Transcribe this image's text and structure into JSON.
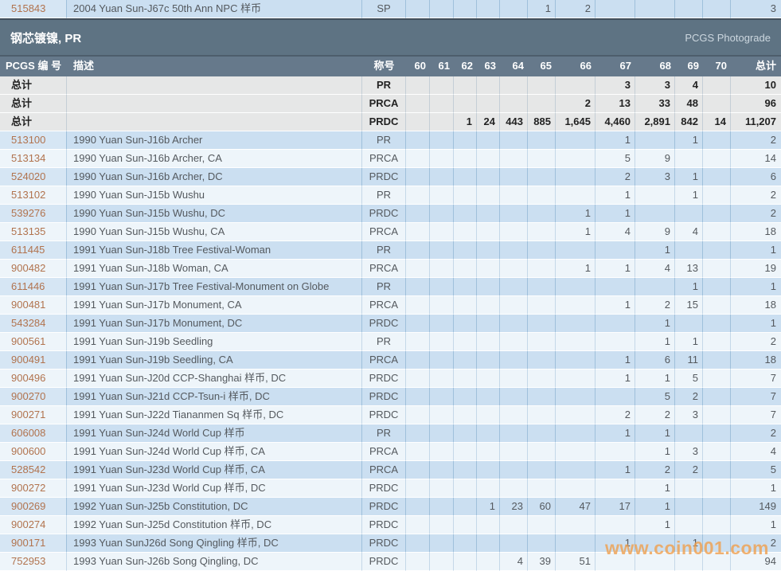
{
  "section": {
    "title": "钢芯镀镍, PR",
    "right_label": "PCGS Photograde"
  },
  "header": {
    "id_label": "PCGS 编 号",
    "desc_label": "描述",
    "designation_label": "称号",
    "grade_labels": [
      "60",
      "61",
      "62",
      "63",
      "64",
      "65",
      "66",
      "67",
      "68",
      "69",
      "70"
    ],
    "total_label": "总计"
  },
  "top_row": {
    "id": "515843",
    "desc": "2004 Yuan Sun-J67c 50th Ann NPC 样币",
    "designation": "SP",
    "grades": [
      "",
      "",
      "",
      "",
      "",
      "1",
      "2",
      "",
      "",
      "",
      ""
    ],
    "total": "3"
  },
  "summary_rows": [
    {
      "id": "总计",
      "desc": "",
      "designation": "PR",
      "grades": [
        "",
        "",
        "",
        "",
        "",
        "",
        "",
        "3",
        "3",
        "4",
        ""
      ],
      "total": "10"
    },
    {
      "id": "总计",
      "desc": "",
      "designation": "PRCA",
      "grades": [
        "",
        "",
        "",
        "",
        "",
        "",
        "2",
        "13",
        "33",
        "48",
        ""
      ],
      "total": "96"
    },
    {
      "id": "总计",
      "desc": "",
      "designation": "PRDC",
      "grades": [
        "",
        "",
        "1",
        "24",
        "443",
        "885",
        "1,645",
        "4,460",
        "2,891",
        "842",
        "14"
      ],
      "total": "11,207"
    }
  ],
  "rows": [
    {
      "id": "513100",
      "desc": "1990 Yuan Sun-J16b Archer",
      "designation": "PR",
      "grades": [
        "",
        "",
        "",
        "",
        "",
        "",
        "",
        "1",
        "",
        "1",
        ""
      ],
      "total": "2"
    },
    {
      "id": "513134",
      "desc": "1990 Yuan Sun-J16b Archer, CA",
      "designation": "PRCA",
      "grades": [
        "",
        "",
        "",
        "",
        "",
        "",
        "",
        "5",
        "9",
        "",
        ""
      ],
      "total": "14"
    },
    {
      "id": "524020",
      "desc": "1990 Yuan Sun-J16b Archer, DC",
      "designation": "PRDC",
      "grades": [
        "",
        "",
        "",
        "",
        "",
        "",
        "",
        "2",
        "3",
        "1",
        ""
      ],
      "total": "6"
    },
    {
      "id": "513102",
      "desc": "1990 Yuan Sun-J15b Wushu",
      "designation": "PR",
      "grades": [
        "",
        "",
        "",
        "",
        "",
        "",
        "",
        "1",
        "",
        "1",
        ""
      ],
      "total": "2"
    },
    {
      "id": "539276",
      "desc": "1990 Yuan Sun-J15b Wushu, DC",
      "designation": "PRDC",
      "grades": [
        "",
        "",
        "",
        "",
        "",
        "",
        "1",
        "1",
        "",
        "",
        ""
      ],
      "total": "2"
    },
    {
      "id": "513135",
      "desc": "1990 Yuan Sun-J15b Wushu, CA",
      "designation": "PRCA",
      "grades": [
        "",
        "",
        "",
        "",
        "",
        "",
        "1",
        "4",
        "9",
        "4",
        ""
      ],
      "total": "18"
    },
    {
      "id": "611445",
      "desc": "1991 Yuan Sun-J18b Tree Festival-Woman",
      "designation": "PR",
      "grades": [
        "",
        "",
        "",
        "",
        "",
        "",
        "",
        "",
        "1",
        "",
        ""
      ],
      "total": "1"
    },
    {
      "id": "900482",
      "desc": "1991 Yuan Sun-J18b Woman, CA",
      "designation": "PRCA",
      "grades": [
        "",
        "",
        "",
        "",
        "",
        "",
        "1",
        "1",
        "4",
        "13",
        ""
      ],
      "total": "19"
    },
    {
      "id": "611446",
      "desc": "1991 Yuan Sun-J17b Tree Festival-Monument on Globe",
      "designation": "PR",
      "grades": [
        "",
        "",
        "",
        "",
        "",
        "",
        "",
        "",
        "",
        "1",
        ""
      ],
      "total": "1"
    },
    {
      "id": "900481",
      "desc": "1991 Yuan Sun-J17b Monument, CA",
      "designation": "PRCA",
      "grades": [
        "",
        "",
        "",
        "",
        "",
        "",
        "",
        "1",
        "2",
        "15",
        ""
      ],
      "total": "18"
    },
    {
      "id": "543284",
      "desc": "1991 Yuan Sun-J17b Monument, DC",
      "designation": "PRDC",
      "grades": [
        "",
        "",
        "",
        "",
        "",
        "",
        "",
        "",
        "1",
        "",
        ""
      ],
      "total": "1"
    },
    {
      "id": "900561",
      "desc": "1991 Yuan Sun-J19b Seedling",
      "designation": "PR",
      "grades": [
        "",
        "",
        "",
        "",
        "",
        "",
        "",
        "",
        "1",
        "1",
        ""
      ],
      "total": "2"
    },
    {
      "id": "900491",
      "desc": "1991 Yuan Sun-J19b Seedling, CA",
      "designation": "PRCA",
      "grades": [
        "",
        "",
        "",
        "",
        "",
        "",
        "",
        "1",
        "6",
        "11",
        ""
      ],
      "total": "18"
    },
    {
      "id": "900496",
      "desc": "1991 Yuan Sun-J20d CCP-Shanghai 样币, DC",
      "designation": "PRDC",
      "grades": [
        "",
        "",
        "",
        "",
        "",
        "",
        "",
        "1",
        "1",
        "5",
        ""
      ],
      "total": "7"
    },
    {
      "id": "900270",
      "desc": "1991 Yuan Sun-J21d CCP-Tsun-i 样币, DC",
      "designation": "PRDC",
      "grades": [
        "",
        "",
        "",
        "",
        "",
        "",
        "",
        "",
        "5",
        "2",
        ""
      ],
      "total": "7"
    },
    {
      "id": "900271",
      "desc": "1991 Yuan Sun-J22d Tiananmen Sq 样币, DC",
      "designation": "PRDC",
      "grades": [
        "",
        "",
        "",
        "",
        "",
        "",
        "",
        "2",
        "2",
        "3",
        ""
      ],
      "total": "7"
    },
    {
      "id": "606008",
      "desc": "1991 Yuan Sun-J24d World Cup 样币",
      "designation": "PR",
      "grades": [
        "",
        "",
        "",
        "",
        "",
        "",
        "",
        "1",
        "1",
        "",
        ""
      ],
      "total": "2"
    },
    {
      "id": "900600",
      "desc": "1991 Yuan Sun-J24d World Cup 样币, CA",
      "designation": "PRCA",
      "grades": [
        "",
        "",
        "",
        "",
        "",
        "",
        "",
        "",
        "1",
        "3",
        ""
      ],
      "total": "4"
    },
    {
      "id": "528542",
      "desc": "1991 Yuan Sun-J23d World Cup 样币, CA",
      "designation": "PRCA",
      "grades": [
        "",
        "",
        "",
        "",
        "",
        "",
        "",
        "1",
        "2",
        "2",
        ""
      ],
      "total": "5"
    },
    {
      "id": "900272",
      "desc": "1991 Yuan Sun-J23d World Cup 样币, DC",
      "designation": "PRDC",
      "grades": [
        "",
        "",
        "",
        "",
        "",
        "",
        "",
        "",
        "1",
        "",
        ""
      ],
      "total": "1"
    },
    {
      "id": "900269",
      "desc": "1992 Yuan Sun-J25b Constitution, DC",
      "designation": "PRDC",
      "grades": [
        "",
        "",
        "",
        "1",
        "23",
        "60",
        "47",
        "17",
        "1",
        "",
        ""
      ],
      "total": "149"
    },
    {
      "id": "900274",
      "desc": "1992 Yuan Sun-J25d Constitution 样币, DC",
      "designation": "PRDC",
      "grades": [
        "",
        "",
        "",
        "",
        "",
        "",
        "",
        "",
        "1",
        "",
        ""
      ],
      "total": "1"
    },
    {
      "id": "900171",
      "desc": "1993 Yuan SunJ26d Song Qingling 样币, DC",
      "designation": "PRDC",
      "grades": [
        "",
        "",
        "",
        "",
        "",
        "",
        "",
        "1",
        "",
        "1",
        ""
      ],
      "total": "2"
    },
    {
      "id": "752953",
      "desc": "1993 Yuan Sun-J26b Song Qingling, DC",
      "designation": "PRDC",
      "grades": [
        "",
        "",
        "",
        "",
        "4",
        "39",
        "51",
        "",
        "",
        "",
        ""
      ],
      "total": "94"
    }
  ],
  "watermark": "www.coin001.com",
  "colors": {
    "band_bg": "#5e7383",
    "header_bg": "#66798b",
    "row_blue": "#cbdff1",
    "row_light": "#eef5fa",
    "summary_bg": "#e6e7e7",
    "accent_link": "#b1734e",
    "watermark": "#f0a04e"
  }
}
